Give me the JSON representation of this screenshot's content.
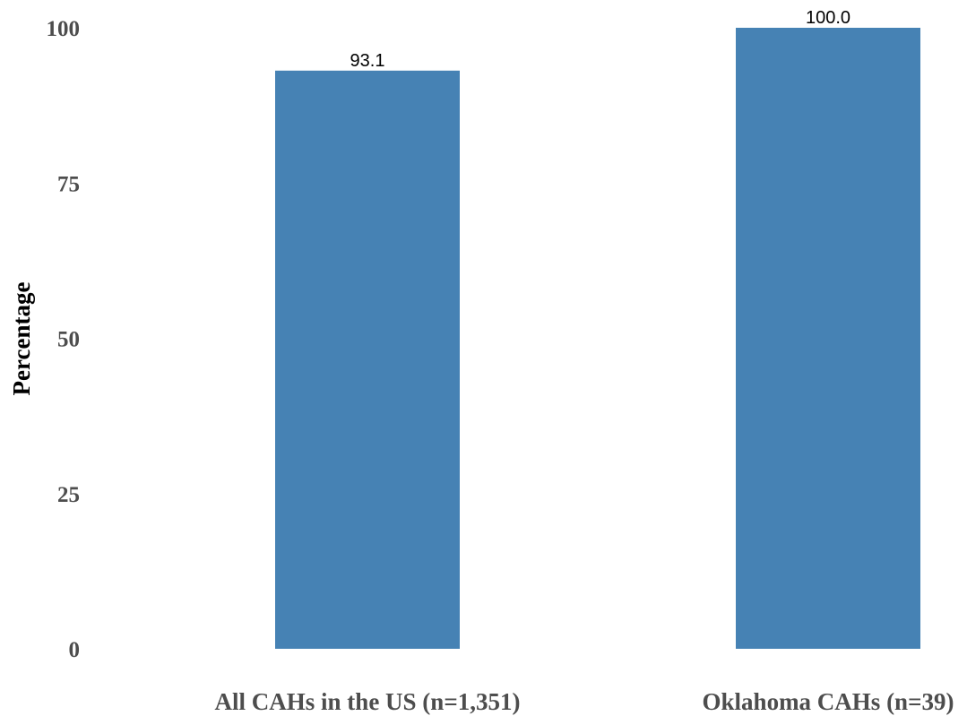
{
  "chart_data": {
    "type": "bar",
    "categories": [
      "All CAHs in the US (n=1,351)",
      "Oklahoma CAHs (n=39)"
    ],
    "values": [
      93.1,
      100.0
    ],
    "data_labels": [
      "93.1",
      "100.0"
    ],
    "ylabel": "Percentage",
    "ylim": [
      0,
      100
    ],
    "yticks": [
      0,
      25,
      50,
      75,
      100
    ],
    "ytick_labels": [
      "0",
      "25",
      "50",
      "75",
      "100"
    ],
    "grid": false,
    "bar_color": "#4682b4"
  }
}
